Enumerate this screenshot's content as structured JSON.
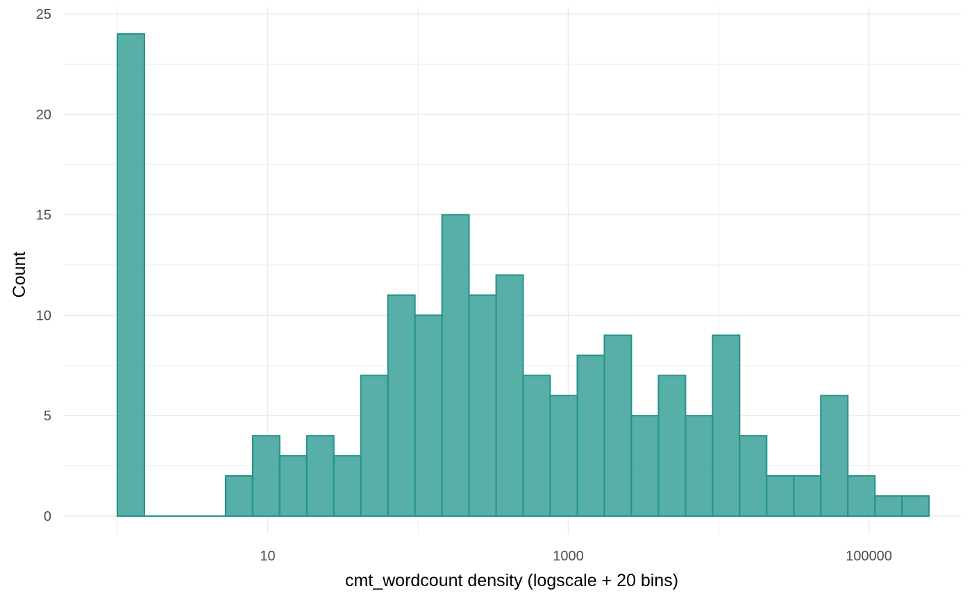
{
  "chart_data": {
    "type": "bar",
    "xlabel": "cmt_wordcount density (logscale + 20 bins)",
    "ylabel": "Count",
    "x_scale": "log10",
    "x_range": [
      0.6,
      300000
    ],
    "ylim": [
      0,
      25
    ],
    "y_ticks": [
      0,
      5,
      10,
      15,
      20,
      25
    ],
    "x_ticks": [
      10,
      1000,
      100000
    ],
    "x_tick_labels": [
      "10",
      "1000",
      "100000"
    ],
    "grid": true,
    "bin_edges_log10": [
      0,
      0.18,
      0.36,
      0.54,
      0.72,
      0.9,
      1.08,
      1.26,
      1.44,
      1.62,
      1.8,
      1.98,
      2.16,
      2.34,
      2.52,
      2.7,
      2.88,
      3.06,
      3.24,
      3.42,
      3.6,
      3.78,
      3.96,
      4.14,
      4.32,
      4.5,
      4.68,
      4.86,
      5.04,
      5.22,
      5.4
    ],
    "counts": [
      24,
      0,
      0,
      0,
      2,
      4,
      3,
      4,
      3,
      7,
      11,
      10,
      15,
      11,
      12,
      7,
      6,
      8,
      9,
      5,
      7,
      5,
      9,
      4,
      2,
      2,
      6,
      2,
      1,
      1
    ],
    "colors": {
      "fill": "#3aa198",
      "stroke": "#25928a",
      "grid": "#ebebeb"
    }
  }
}
